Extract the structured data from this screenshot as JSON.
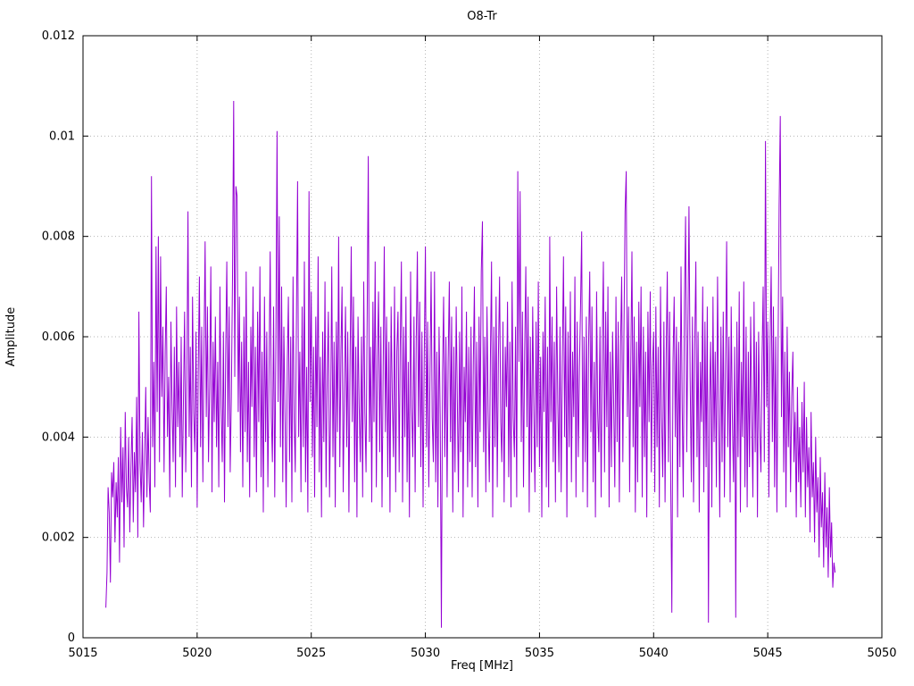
{
  "chart_data": {
    "type": "line",
    "title": "O8-Tr",
    "xlabel": "Freq [MHz]",
    "ylabel": "Amplitude",
    "xlim": [
      5015,
      5050
    ],
    "ylim": [
      0,
      0.012
    ],
    "x_ticks": [
      5015,
      5020,
      5025,
      5030,
      5035,
      5040,
      5045,
      5050
    ],
    "x_tick_labels": [
      "5015",
      "5020",
      "5025",
      "5030",
      "5035",
      "5040",
      "5045",
      "5050"
    ],
    "y_ticks": [
      0,
      0.002,
      0.004,
      0.006,
      0.008,
      0.01,
      0.012
    ],
    "y_tick_labels": [
      "0",
      "0.002",
      "0.004",
      "0.006",
      "0.008",
      "0.01",
      "0.012"
    ],
    "grid": true,
    "legend": "none",
    "line_color": "#9400d3",
    "grid_color": "#b4b4b4",
    "axis_color": "#000000",
    "series": [
      {
        "name": "O8-Tr",
        "x_start_mhz": 5016.0,
        "x_step_mhz": 0.05,
        "n_points": 640,
        "amplitude_scale": 0.0001,
        "amplitude_e4": [
          6,
          13,
          30,
          25,
          11,
          33,
          28,
          35,
          19,
          31,
          24,
          36,
          15,
          42,
          27,
          38,
          18,
          45,
          30,
          26,
          40,
          21,
          34,
          44,
          23,
          37,
          29,
          48,
          20,
          65,
          35,
          27,
          41,
          22,
          36,
          50,
          28,
          44,
          31,
          25,
          92,
          38,
          55,
          30,
          78,
          45,
          80,
          35,
          76,
          48,
          62,
          33,
          57,
          70,
          40,
          52,
          28,
          63,
          47,
          35,
          58,
          30,
          66,
          42,
          55,
          36,
          60,
          28,
          47,
          65,
          33,
          52,
          85,
          40,
          58,
          30,
          68,
          45,
          37,
          61,
          26,
          53,
          72,
          38,
          62,
          31,
          57,
          79,
          44,
          66,
          35,
          50,
          74,
          29,
          59,
          43,
          64,
          38,
          55,
          30,
          70,
          46,
          35,
          61,
          27,
          56,
          75,
          42,
          66,
          33,
          48,
          72,
          107,
          52,
          90,
          88,
          45,
          68,
          37,
          59,
          30,
          64,
          41,
          73,
          35,
          55,
          28,
          62,
          46,
          70,
          36,
          58,
          29,
          65,
          43,
          74,
          32,
          57,
          25,
          68,
          39,
          61,
          30,
          53,
          77,
          44,
          35,
          66,
          28,
          59,
          101,
          47,
          84,
          38,
          70,
          31,
          62,
          45,
          26,
          55,
          68,
          35,
          60,
          27,
          72,
          44,
          33,
          63,
          91,
          40,
          57,
          29,
          66,
          38,
          75,
          31,
          54,
          25,
          89,
          47,
          69,
          36,
          58,
          28,
          64,
          42,
          76,
          33,
          56,
          24,
          61,
          39,
          71,
          30,
          52,
          65,
          28,
          47,
          74,
          36,
          59,
          26,
          63,
          41,
          80,
          34,
          57,
          70,
          29,
          49,
          66,
          38,
          61,
          25,
          55,
          78,
          43,
          68,
          31,
          58,
          24,
          64,
          46,
          35,
          60,
          28,
          71,
          45,
          33,
          65,
          96,
          39,
          58,
          27,
          67,
          43,
          75,
          30,
          56,
          69,
          37,
          62,
          26,
          54,
          78,
          41,
          64,
          32,
          59,
          25,
          66,
          48,
          36,
          70,
          29,
          57,
          65,
          33,
          58,
          75,
          27,
          62,
          40,
          68,
          31,
          55,
          24,
          73,
          46,
          36,
          64,
          29,
          59,
          77,
          42,
          67,
          34,
          61,
          26,
          56,
          78,
          38,
          63,
          30,
          52,
          73,
          44,
          35,
          73,
          31,
          57,
          26,
          62,
          44,
          2,
          53,
          68,
          36,
          60,
          28,
          55,
          71,
          39,
          64,
          25,
          58,
          33,
          66,
          47,
          29,
          61,
          37,
          70,
          24,
          54,
          43,
          65,
          30,
          58,
          35,
          62,
          28,
          55,
          70,
          34,
          59,
          26,
          64,
          41,
          73,
          83,
          37,
          60,
          29,
          66,
          45,
          31,
          57,
          75,
          24,
          62,
          38,
          68,
          30,
          56,
          72,
          43,
          35,
          63,
          27,
          58,
          46,
          67,
          32,
          59,
          26,
          71,
          44,
          36,
          62,
          28,
          93,
          55,
          89,
          39,
          65,
          30,
          57,
          74,
          42,
          68,
          25,
          60,
          33,
          66,
          47,
          29,
          63,
          38,
          71,
          34,
          56,
          24,
          61,
          45,
          68,
          30,
          58,
          26,
          80,
          43,
          64,
          35,
          59,
          27,
          70,
          47,
          33,
          62,
          29,
          55,
          76,
          40,
          66,
          24,
          61,
          38,
          69,
          31,
          57,
          44,
          72,
          28,
          63,
          36,
          54,
          67,
          81,
          29,
          60,
          35,
          64,
          26,
          58,
          73,
          41,
          66,
          31,
          55,
          24,
          69,
          45,
          37,
          62,
          28,
          59,
          75,
          33,
          65,
          42,
          70,
          26,
          57,
          34,
          61,
          47,
          30,
          68,
          39,
          63,
          27,
          58,
          72,
          35,
          60,
          85,
          93,
          44,
          66,
          29,
          55,
          77,
          38,
          64,
          25,
          59,
          31,
          67,
          46,
          70,
          28,
          62,
          36,
          57,
          24,
          65,
          43,
          69,
          33,
          54,
          61,
          29,
          66,
          38,
          58,
          26,
          70,
          44,
          32,
          63,
          27,
          57,
          73,
          35,
          65,
          30,
          5,
          55,
          68,
          40,
          62,
          24,
          59,
          34,
          74,
          46,
          28,
          67,
          84,
          37,
          60,
          86,
          52,
          31,
          64,
          27,
          58,
          75,
          36,
          61,
          25,
          55,
          43,
          70,
          29,
          63,
          34,
          66,
          3,
          47,
          59,
          26,
          68,
          39,
          57,
          30,
          72,
          45,
          24,
          62,
          35,
          65,
          28,
          53,
          79,
          38,
          60,
          27,
          66,
          44,
          31,
          58,
          4,
          63,
          36,
          69,
          25,
          55,
          40,
          71,
          30,
          62,
          26,
          57,
          34,
          64,
          45,
          28,
          67,
          37,
          59,
          24,
          61,
          42,
          33,
          56,
          70,
          35,
          99,
          46,
          63,
          28,
          58,
          74,
          39,
          66,
          30,
          60,
          25,
          55,
          86,
          104,
          44,
          68,
          33,
          57,
          26,
          62,
          38,
          53,
          29,
          48,
          57,
          35,
          45,
          24,
          50,
          31,
          42,
          26,
          47,
          33,
          51,
          24,
          44,
          30,
          38,
          21,
          45,
          28,
          35,
          19,
          40,
          25,
          32,
          16,
          36,
          22,
          29,
          14,
          33,
          18,
          26,
          12,
          30,
          16,
          23,
          10,
          15,
          13
        ]
      }
    ]
  }
}
